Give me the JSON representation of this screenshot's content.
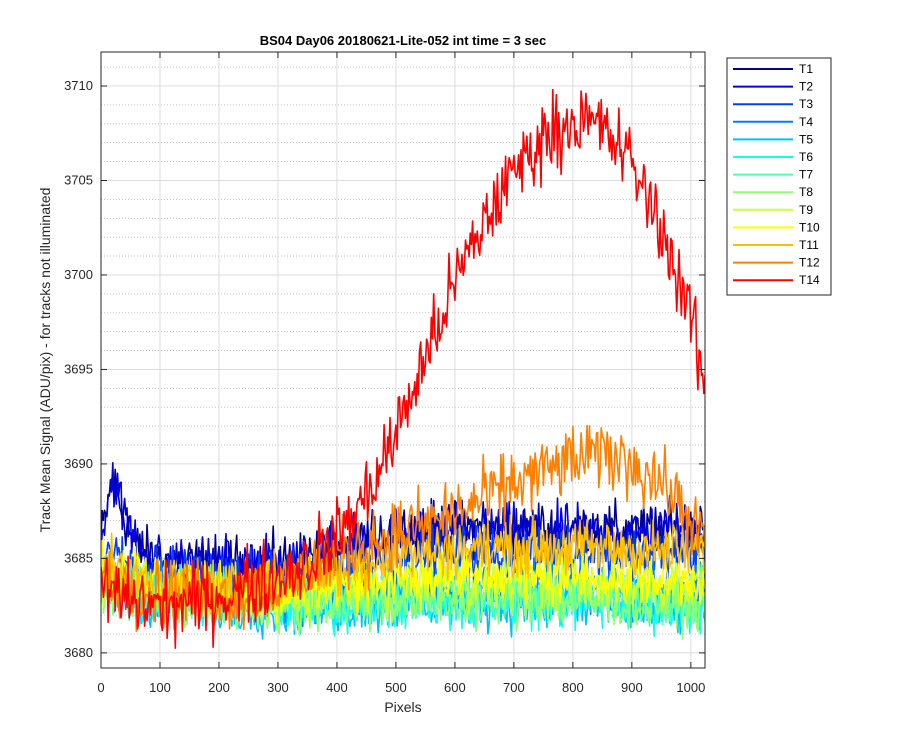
{
  "chart_data": {
    "type": "line",
    "title": "BS04 Day06 20180621-Lite-052 int time = 3 sec",
    "xlabel": "Pixels",
    "ylabel": "Track Mean Signal (ADU/pix) - for tracks not illuminated",
    "xlim": [
      0,
      1024
    ],
    "ylim": [
      3679.2,
      3711.8
    ],
    "xticks": [
      0,
      100,
      200,
      300,
      400,
      500,
      600,
      700,
      800,
      900,
      1000
    ],
    "yticks": [
      3680,
      3685,
      3690,
      3695,
      3700,
      3705,
      3710
    ],
    "grid": true,
    "minor_grid": true,
    "legend_position": "outside-top-right",
    "series": [
      {
        "name": "T1",
        "color": "#00008f",
        "x": [
          0,
          20,
          30,
          60,
          100,
          200,
          300,
          400,
          500,
          600,
          700,
          800,
          900,
          1000,
          1024
        ],
        "y": [
          3686.0,
          3689.2,
          3688.0,
          3685.5,
          3684.8,
          3684.7,
          3684.8,
          3685.3,
          3686.4,
          3686.6,
          3686.5,
          3686.5,
          3686.5,
          3686.6,
          3686.8
        ]
      },
      {
        "name": "T2",
        "color": "#0000e0",
        "x": [
          0,
          20,
          30,
          60,
          100,
          200,
          300,
          400,
          500,
          600,
          700,
          800,
          900,
          1000,
          1024
        ],
        "y": [
          3686.0,
          3689.5,
          3688.2,
          3685.6,
          3684.9,
          3684.7,
          3684.8,
          3685.3,
          3686.3,
          3686.5,
          3686.4,
          3686.4,
          3686.3,
          3686.5,
          3686.7
        ]
      },
      {
        "name": "T3",
        "color": "#0040ff",
        "x": [
          0,
          100,
          200,
          300,
          400,
          500,
          600,
          700,
          800,
          900,
          1000,
          1024
        ],
        "y": [
          3685.2,
          3684.2,
          3684.0,
          3684.0,
          3684.3,
          3685.0,
          3685.3,
          3685.3,
          3685.3,
          3685.2,
          3685.2,
          3685.3
        ]
      },
      {
        "name": "T4",
        "color": "#0080ff",
        "x": [
          0,
          100,
          200,
          300,
          400,
          500,
          600,
          700,
          800,
          900,
          1000,
          1024
        ],
        "y": [
          3684.2,
          3683.3,
          3683.0,
          3682.9,
          3683.0,
          3683.3,
          3683.4,
          3683.4,
          3683.4,
          3683.3,
          3683.2,
          3683.2
        ]
      },
      {
        "name": "T5",
        "color": "#00bfff",
        "x": [
          0,
          100,
          200,
          300,
          400,
          500,
          600,
          700,
          800,
          900,
          1000,
          1024
        ],
        "y": [
          3683.5,
          3682.9,
          3682.6,
          3682.4,
          3682.4,
          3682.6,
          3682.6,
          3682.6,
          3682.5,
          3682.4,
          3682.3,
          3682.2
        ]
      },
      {
        "name": "T6",
        "color": "#10ffef",
        "x": [
          0,
          100,
          200,
          300,
          400,
          500,
          600,
          700,
          800,
          900,
          1000,
          1024
        ],
        "y": [
          3683.6,
          3683.0,
          3682.7,
          3682.6,
          3682.6,
          3682.8,
          3682.8,
          3682.8,
          3682.7,
          3682.6,
          3682.6,
          3682.5
        ]
      },
      {
        "name": "T7",
        "color": "#50ffaf",
        "x": [
          0,
          100,
          200,
          300,
          400,
          500,
          600,
          700,
          800,
          900,
          1000,
          1024
        ],
        "y": [
          3683.8,
          3683.1,
          3682.9,
          3682.8,
          3682.9,
          3683.1,
          3683.1,
          3683.1,
          3683.0,
          3682.9,
          3682.9,
          3682.8
        ]
      },
      {
        "name": "T8",
        "color": "#8fff70",
        "x": [
          0,
          100,
          200,
          300,
          400,
          500,
          600,
          700,
          800,
          900,
          1000,
          1024
        ],
        "y": [
          3683.4,
          3682.8,
          3682.5,
          3682.5,
          3682.6,
          3682.8,
          3682.8,
          3682.8,
          3682.8,
          3682.7,
          3682.6,
          3682.6
        ]
      },
      {
        "name": "T9",
        "color": "#cfff30",
        "x": [
          0,
          100,
          200,
          300,
          400,
          500,
          600,
          700,
          800,
          900,
          1000,
          1024
        ],
        "y": [
          3684.0,
          3683.4,
          3683.2,
          3683.2,
          3683.4,
          3683.7,
          3683.8,
          3683.8,
          3683.7,
          3683.7,
          3683.6,
          3683.6
        ]
      },
      {
        "name": "T10",
        "color": "#ffff00",
        "x": [
          0,
          100,
          200,
          300,
          400,
          500,
          600,
          700,
          800,
          900,
          1000,
          1024
        ],
        "y": [
          3684.1,
          3683.5,
          3683.3,
          3683.4,
          3683.6,
          3684.0,
          3684.1,
          3684.1,
          3684.0,
          3684.0,
          3683.9,
          3683.9
        ]
      },
      {
        "name": "T11",
        "color": "#ffbf00",
        "x": [
          0,
          100,
          200,
          300,
          400,
          500,
          600,
          700,
          800,
          900,
          1000,
          1024
        ],
        "y": [
          3684.4,
          3683.7,
          3683.6,
          3683.8,
          3684.4,
          3685.2,
          3685.5,
          3685.6,
          3685.6,
          3685.5,
          3685.4,
          3685.4
        ]
      },
      {
        "name": "T12",
        "color": "#ff8000",
        "x": [
          0,
          100,
          200,
          300,
          350,
          400,
          450,
          500,
          550,
          600,
          650,
          700,
          750,
          800,
          850,
          900,
          950,
          1000,
          1024
        ],
        "y": [
          3684.0,
          3683.2,
          3683.0,
          3683.4,
          3684.3,
          3685.2,
          3685.8,
          3686.3,
          3686.8,
          3687.4,
          3688.1,
          3689.0,
          3689.6,
          3690.2,
          3690.5,
          3690.1,
          3689.0,
          3687.1,
          3685.8
        ]
      },
      {
        "name": "T14",
        "color": "#ff0000",
        "x": [
          0,
          50,
          100,
          150,
          200,
          250,
          300,
          350,
          400,
          450,
          500,
          550,
          600,
          650,
          700,
          750,
          800,
          850,
          900,
          950,
          1000,
          1024
        ],
        "y": [
          3683.5,
          3682.8,
          3682.5,
          3682.6,
          3683.0,
          3683.4,
          3684.0,
          3684.8,
          3686.2,
          3688.3,
          3691.6,
          3695.6,
          3699.6,
          3702.8,
          3705.5,
          3707.3,
          3708.2,
          3707.8,
          3705.9,
          3702.5,
          3697.8,
          3694.0
        ]
      }
    ]
  }
}
